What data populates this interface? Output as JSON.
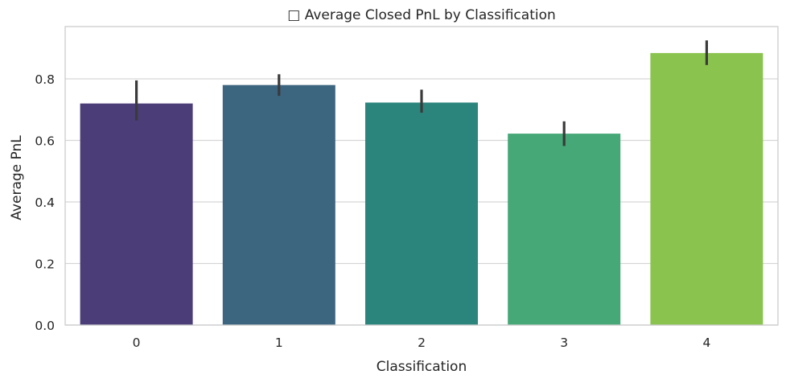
{
  "chart_data": {
    "type": "bar",
    "title": "□ Average Closed PnL by Classification",
    "xlabel": "Classification",
    "ylabel": "Average PnL",
    "categories": [
      "0",
      "1",
      "2",
      "3",
      "4"
    ],
    "values": [
      0.72,
      0.78,
      0.723,
      0.622,
      0.884
    ],
    "error_low": [
      0.665,
      0.745,
      0.69,
      0.582,
      0.845
    ],
    "error_high": [
      0.795,
      0.815,
      0.765,
      0.662,
      0.925
    ],
    "ylim": [
      0,
      0.97
    ],
    "yticks": [
      "0.0",
      "0.2",
      "0.4",
      "0.6",
      "0.8"
    ],
    "ytick_values": [
      0,
      0.2,
      0.4,
      0.6,
      0.8
    ],
    "grid": true,
    "colors": [
      "#4a3d78",
      "#3c6580",
      "#2c857d",
      "#45a876",
      "#8bc34f"
    ],
    "errorbar_color": "#3a3a3a",
    "grid_color": "#d6d6d6",
    "spine_color": "#cccccc",
    "text_color": "#262626"
  }
}
